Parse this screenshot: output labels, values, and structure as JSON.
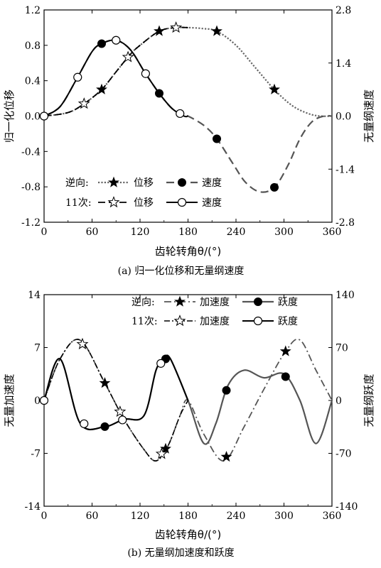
{
  "chart_data": [
    {
      "type": "line",
      "caption": "(a)  归一化位移和无量纲速度",
      "xlabel": "齿轮转角θ/(°)",
      "ylabel": "归一化位移",
      "ylabel_right": "无量纲速度",
      "xlim": [
        0,
        360
      ],
      "ylim": [
        -1.2,
        1.2
      ],
      "ylim_right": [
        -2.8,
        2.8
      ],
      "xticks": [
        "0",
        "60",
        "120",
        "180",
        "240",
        "300",
        "360"
      ],
      "yticks": [
        "-1.2",
        "-0.8",
        "-0.4",
        "0.0",
        "0.4",
        "0.8",
        "1.2"
      ],
      "yticks_right": [
        "-2.8",
        "-1.4",
        "0.0",
        "1.4",
        "2.8"
      ],
      "legend": {
        "row1_prefix": "逆向:",
        "row2_prefix": "11次:",
        "row1_items": [
          "位移",
          "速度"
        ],
        "row2_items": [
          "位移",
          "速度"
        ],
        "placement": "bottom-left"
      },
      "series": [
        {
          "name": "位移",
          "group": "逆向",
          "axis": "left",
          "style": "dotted",
          "color": "#555555",
          "marker": "star-filled",
          "x": [
            0,
            30,
            50,
            72,
            90,
            108,
            120,
            144,
            165,
            180,
            198,
            216,
            240,
            264,
            288,
            310,
            330,
            345,
            360
          ],
          "y": [
            0,
            0.04,
            0.14,
            0.3,
            0.5,
            0.7,
            0.8,
            0.96,
            1.0,
            1.0,
            0.99,
            0.96,
            0.8,
            0.55,
            0.3,
            0.12,
            0.03,
            0.0,
            0
          ],
          "markers_x": [
            72,
            144,
            216,
            288
          ]
        },
        {
          "name": "速度",
          "group": "逆向",
          "axis": "right",
          "style": "dashed",
          "color": "#555555",
          "marker": "circle-filled",
          "x": [
            0,
            20,
            40,
            60,
            72,
            90,
            108,
            126,
            144,
            160,
            175,
            180,
            200,
            216,
            236,
            252,
            270,
            288,
            305,
            320,
            335,
            350,
            360
          ],
          "y": [
            0,
            0.25,
            0.95,
            1.7,
            1.91,
            2.0,
            1.75,
            1.15,
            0.6,
            0.2,
            0.0,
            0.0,
            -0.25,
            -0.6,
            -1.25,
            -1.75,
            -2.0,
            -1.88,
            -1.3,
            -0.6,
            -0.15,
            0.0,
            0
          ],
          "markers_x": [
            72,
            144,
            216,
            288
          ]
        },
        {
          "name": "位移",
          "group": "11次",
          "axis": "left",
          "style": "dashed-black",
          "color": "#000000",
          "marker": "star-open",
          "x": [
            0,
            30,
            50,
            72,
            90,
            108,
            120,
            144,
            165,
            180
          ],
          "y": [
            0,
            0.04,
            0.14,
            0.3,
            0.5,
            0.7,
            0.8,
            0.96,
            1.0,
            1.0
          ],
          "markers_x": [
            50,
            105,
            165
          ]
        },
        {
          "name": "速度",
          "group": "11次",
          "axis": "right",
          "style": "solid",
          "color": "#000000",
          "marker": "circle-open",
          "x": [
            0,
            20,
            40,
            60,
            72,
            90,
            108,
            126,
            144,
            160,
            175,
            180
          ],
          "y": [
            0,
            0.25,
            0.95,
            1.7,
            1.91,
            2.0,
            1.75,
            1.15,
            0.6,
            0.2,
            0.0,
            0.0
          ],
          "markers_x": [
            0,
            42,
            90,
            127,
            170
          ]
        }
      ]
    },
    {
      "type": "line",
      "caption": "(b)  无量纲加速度和跃度",
      "xlabel": "齿轮转角θ/(°)",
      "ylabel": "无量加速度",
      "ylabel_right": "无量纲跃度",
      "xlim": [
        0,
        360
      ],
      "ylim": [
        -14,
        14
      ],
      "ylim_right": [
        -140,
        140
      ],
      "xticks": [
        "0",
        "60",
        "120",
        "180",
        "240",
        "300",
        "360"
      ],
      "yticks": [
        "-14",
        "-7",
        "0",
        "7",
        "14"
      ],
      "yticks_right": [
        "-140",
        "-70",
        "0",
        "70",
        "140"
      ],
      "legend": {
        "row1_prefix": "逆向:",
        "row2_prefix": "11次:",
        "row1_items": [
          "加速度",
          "跃度"
        ],
        "row2_items": [
          "加速度",
          "跃度"
        ],
        "placement": "top-right"
      },
      "series": [
        {
          "name": "加速度",
          "group": "逆向",
          "axis": "left",
          "style": "dashdot",
          "color": "#555555",
          "marker": "star-filled",
          "x": [
            0,
            20,
            45,
            75,
            100,
            125,
            140,
            155,
            170,
            180,
            200,
            225,
            250,
            275,
            302,
            320,
            340,
            360
          ],
          "y": [
            0,
            5.5,
            8.0,
            2.5,
            -2.5,
            -6.5,
            -8.0,
            -6.0,
            -2.0,
            0,
            -4.5,
            -8.0,
            -3.5,
            1.5,
            6.5,
            8.0,
            4.0,
            0
          ],
          "markers_x": [
            76,
            152,
            228,
            302
          ]
        },
        {
          "name": "跃度",
          "group": "逆向",
          "axis": "right",
          "style": "solid-gray",
          "color": "#555555",
          "marker": "circle-filled",
          "x": [
            0,
            20,
            45,
            75,
            100,
            125,
            140,
            150,
            158,
            180,
            200,
            215,
            230,
            250,
            275,
            300,
            320,
            340,
            360
          ],
          "y": [
            0,
            55,
            -30,
            -35,
            -25,
            -20,
            40,
            55,
            55,
            0,
            -57,
            -30,
            20,
            40,
            30,
            35,
            0,
            -57,
            0
          ],
          "markers_x": [
            76,
            152,
            228,
            302
          ]
        },
        {
          "name": "加速度",
          "group": "11次",
          "axis": "left",
          "style": "dashdot-black",
          "color": "#000000",
          "marker": "star-open",
          "x": [
            0,
            20,
            45,
            75,
            100,
            125,
            140,
            155,
            170,
            180
          ],
          "y": [
            0,
            5.5,
            8.0,
            2.5,
            -2.5,
            -6.5,
            -8.0,
            -6.0,
            -2.0,
            0
          ],
          "markers_x": [
            48,
            95,
            147
          ]
        },
        {
          "name": "跃度",
          "group": "11次",
          "axis": "right",
          "style": "solid",
          "color": "#000000",
          "marker": "circle-open",
          "x": [
            0,
            20,
            45,
            75,
            100,
            125,
            140,
            150,
            158,
            180
          ],
          "y": [
            0,
            55,
            -30,
            -35,
            -25,
            -20,
            40,
            55,
            55,
            0
          ],
          "markers_x": [
            0,
            50,
            98,
            146
          ]
        }
      ]
    }
  ]
}
